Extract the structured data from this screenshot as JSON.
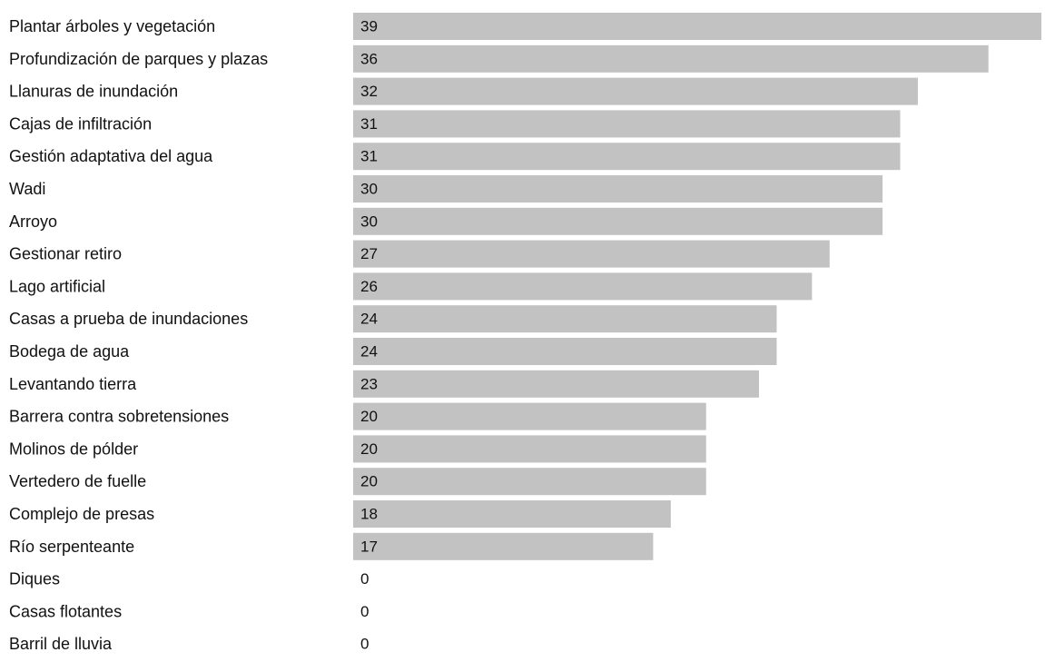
{
  "chart_data": {
    "type": "bar",
    "orientation": "horizontal",
    "title": "",
    "xlabel": "",
    "ylabel": "",
    "categories": [
      "Plantar árboles y vegetación",
      "Profundización de parques y plazas",
      "Llanuras de inundación",
      "Cajas de infiltración",
      "Gestión adaptativa del agua",
      "Wadi",
      "Arroyo",
      "Gestionar retiro",
      "Lago artificial",
      "Casas a prueba de inundaciones",
      "Bodega de agua",
      "Levantando tierra",
      "Barrera contra sobretensiones",
      "Molinos de pólder",
      "Vertedero de fuelle",
      "Complejo de presas",
      "Río serpenteante",
      "Diques",
      "Casas flotantes",
      "Barril de lluvia"
    ],
    "values": [
      39,
      36,
      32,
      31,
      31,
      30,
      30,
      27,
      26,
      24,
      24,
      23,
      20,
      20,
      20,
      18,
      17,
      0,
      0,
      0
    ],
    "xlim": [
      0,
      39
    ],
    "grid": false,
    "legend": "none",
    "bar_color": "#c2c2c2"
  }
}
